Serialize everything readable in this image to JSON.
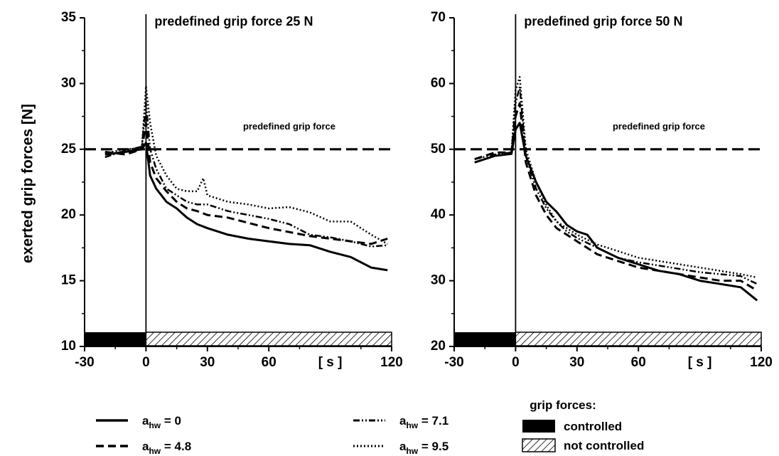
{
  "figure": {
    "ylabel": "exerted grip forces  [N]"
  },
  "chart_data": [
    {
      "type": "line",
      "title": "predefined grip force 25 N",
      "xunit": "[ s ]",
      "xlim": [
        -30,
        120
      ],
      "ylim": [
        10,
        35
      ],
      "xticks": [
        "-30",
        "0",
        "30",
        "60",
        "120"
      ],
      "yticks": [
        "10",
        "15",
        "20",
        "25",
        "30",
        "35"
      ],
      "reference_line": {
        "y": 25,
        "label": "predefined grip force"
      },
      "phase_bar": {
        "controlled": [
          -30,
          0
        ],
        "not_controlled": [
          0,
          120
        ]
      },
      "series": [
        {
          "name": "a_hw = 0",
          "style": "solid",
          "x": [
            -20,
            -10,
            -2,
            0,
            2,
            5,
            10,
            15,
            20,
            25,
            30,
            40,
            50,
            60,
            70,
            80,
            90,
            100,
            110,
            118
          ],
          "y": [
            24.6,
            24.8,
            25.0,
            25.5,
            23.0,
            22.0,
            21.0,
            20.5,
            19.8,
            19.3,
            19.0,
            18.5,
            18.2,
            18.0,
            17.8,
            17.7,
            17.2,
            16.8,
            16.0,
            15.8
          ]
        },
        {
          "name": "a_hw = 4.8",
          "style": "dashed",
          "x": [
            -20,
            -10,
            -2,
            0,
            2,
            5,
            10,
            15,
            20,
            25,
            30,
            40,
            50,
            60,
            70,
            80,
            90,
            100,
            110,
            118
          ],
          "y": [
            24.8,
            24.6,
            25.0,
            27.0,
            24.0,
            22.8,
            21.8,
            21.0,
            20.5,
            20.3,
            20.0,
            19.8,
            19.4,
            19.0,
            18.7,
            18.4,
            18.2,
            18.0,
            17.8,
            18.2
          ]
        },
        {
          "name": "a_hw = 7.1",
          "style": "dashdot",
          "x": [
            -20,
            -10,
            -2,
            0,
            2,
            5,
            10,
            15,
            20,
            25,
            30,
            40,
            50,
            60,
            70,
            80,
            90,
            100,
            110,
            118
          ],
          "y": [
            24.4,
            24.9,
            25.2,
            28.5,
            25.0,
            23.5,
            22.0,
            21.5,
            21.0,
            20.8,
            20.8,
            20.3,
            20.0,
            19.7,
            19.3,
            18.5,
            18.3,
            18.0,
            17.6,
            17.7
          ]
        },
        {
          "name": "a_hw = 9.5",
          "style": "dotted",
          "x": [
            -20,
            -10,
            -2,
            0,
            2,
            5,
            10,
            15,
            20,
            25,
            28,
            30,
            40,
            50,
            60,
            70,
            80,
            90,
            100,
            110,
            118
          ],
          "y": [
            24.7,
            25.0,
            25.1,
            29.8,
            27.0,
            24.5,
            23.0,
            22.0,
            21.8,
            21.8,
            22.8,
            21.5,
            21.0,
            20.8,
            20.5,
            20.6,
            20.2,
            19.5,
            19.5,
            18.5,
            17.8
          ]
        }
      ]
    },
    {
      "type": "line",
      "title": "predefined grip force 50 N",
      "xunit": "[ s ]",
      "xlim": [
        -30,
        120
      ],
      "ylim": [
        20,
        70
      ],
      "xticks": [
        "-30",
        "0",
        "30",
        "60",
        "120"
      ],
      "yticks": [
        "20",
        "30",
        "40",
        "50",
        "60",
        "70"
      ],
      "reference_line": {
        "y": 50,
        "label": "predefined grip force"
      },
      "phase_bar": {
        "controlled": [
          -30,
          0
        ],
        "not_controlled": [
          0,
          120
        ]
      },
      "series": [
        {
          "name": "a_hw = 0",
          "style": "solid",
          "x": [
            -20,
            -10,
            -2,
            0,
            2,
            5,
            10,
            15,
            20,
            25,
            30,
            35,
            40,
            50,
            60,
            70,
            80,
            90,
            100,
            110,
            118
          ],
          "y": [
            48.0,
            49.0,
            49.3,
            53.0,
            54.0,
            49.0,
            45.0,
            42.0,
            40.5,
            38.5,
            37.5,
            37.0,
            35.0,
            33.5,
            32.5,
            31.5,
            31.0,
            30.0,
            29.5,
            29.0,
            27.0
          ]
        },
        {
          "name": "a_hw = 4.8",
          "style": "dashed",
          "x": [
            -20,
            -10,
            -2,
            0,
            2,
            5,
            10,
            15,
            20,
            25,
            30,
            40,
            50,
            60,
            70,
            80,
            90,
            100,
            110,
            118
          ],
          "y": [
            48.5,
            49.5,
            49.5,
            55.0,
            57.0,
            48.0,
            43.0,
            40.0,
            38.0,
            37.0,
            36.0,
            34.0,
            33.0,
            32.0,
            31.5,
            31.0,
            30.5,
            30.0,
            30.0,
            28.5
          ]
        },
        {
          "name": "a_hw = 7.1",
          "style": "dashdot",
          "x": [
            -20,
            -10,
            -2,
            0,
            2,
            5,
            10,
            15,
            20,
            25,
            30,
            40,
            50,
            60,
            70,
            80,
            90,
            100,
            110,
            118
          ],
          "y": [
            48.5,
            49.2,
            49.5,
            57.0,
            59.5,
            49.0,
            44.0,
            41.0,
            39.0,
            37.5,
            36.5,
            35.0,
            33.5,
            32.8,
            32.3,
            31.8,
            31.3,
            31.0,
            30.7,
            29.5
          ]
        },
        {
          "name": "a_hw = 9.5",
          "style": "dotted",
          "x": [
            -20,
            -10,
            -2,
            0,
            2,
            5,
            10,
            15,
            20,
            25,
            30,
            40,
            50,
            60,
            70,
            80,
            90,
            100,
            110,
            118
          ],
          "y": [
            48.0,
            49.0,
            49.5,
            59.0,
            61.0,
            50.0,
            45.0,
            41.5,
            39.0,
            38.0,
            37.0,
            35.5,
            34.5,
            33.5,
            33.0,
            32.5,
            32.0,
            31.5,
            31.0,
            30.5
          ]
        }
      ]
    }
  ],
  "legend": {
    "items": [
      {
        "var": "a",
        "sub": "hw",
        "value": "= 0",
        "style": "solid"
      },
      {
        "var": "a",
        "sub": "hw",
        "value": "= 4.8",
        "style": "dashed"
      },
      {
        "var": "a",
        "sub": "hw",
        "value": "= 7.1",
        "style": "dashdot"
      },
      {
        "var": "a",
        "sub": "hw",
        "value": "= 9.5",
        "style": "dotted"
      }
    ],
    "phase_title": "grip forces:",
    "phase_controlled": "controlled",
    "phase_not_controlled": "not controlled"
  }
}
